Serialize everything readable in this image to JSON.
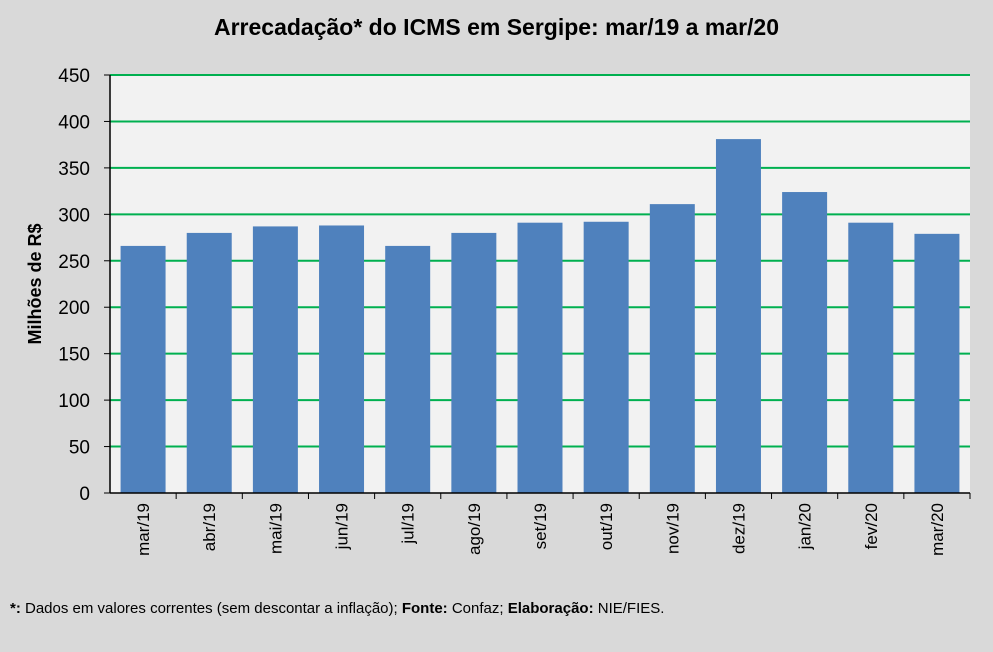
{
  "chart_data": {
    "type": "bar",
    "title": "Arrecadação* do ICMS em Sergipe: mar/19 a mar/20",
    "xlabel": "",
    "ylabel": "Milhões de R$",
    "ylim": [
      0,
      450
    ],
    "yticks": [
      0,
      50,
      100,
      150,
      200,
      250,
      300,
      350,
      400,
      450
    ],
    "grid": true,
    "categories": [
      "mar/19",
      "abr/19",
      "mai/19",
      "jun/19",
      "jul/19",
      "ago/19",
      "set/19",
      "out/19",
      "nov/19",
      "dez/19",
      "jan/20",
      "fev/20",
      "mar/20"
    ],
    "values": [
      266,
      280,
      287,
      288,
      266,
      280,
      291,
      292,
      311,
      381,
      324,
      291,
      279
    ],
    "colors": {
      "bar": "#4f81bd",
      "grid": "#00b050",
      "plot_bg": "#f2f2f2"
    }
  },
  "footer": {
    "star": "*:",
    "note": " Dados em valores correntes (sem descontar a inflação); ",
    "source_label": "Fonte:",
    "source": " Confaz; ",
    "elab_label": "Elaboração:",
    "elab": " NIE/FIES."
  }
}
